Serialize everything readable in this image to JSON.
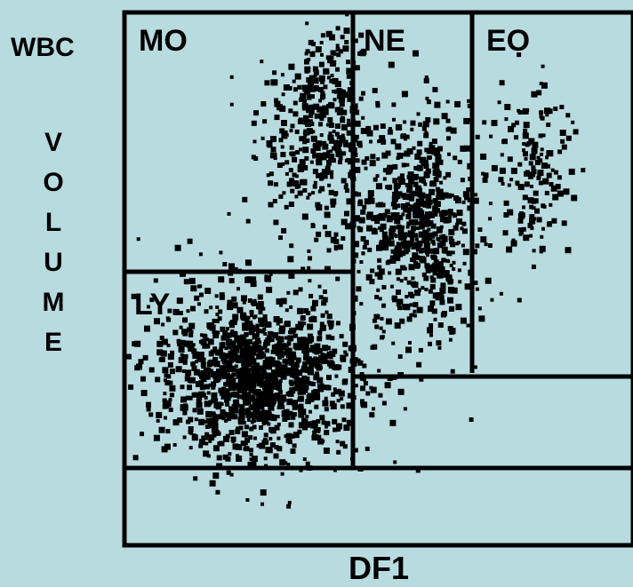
{
  "chart_data": {
    "type": "scatter",
    "title": "WBC",
    "xlabel": "DF1",
    "ylabel": "VOLUME",
    "xlim": [
      0,
      100
    ],
    "ylim": [
      0,
      100
    ],
    "grid": false,
    "colors": {
      "background": "#b8dbe0",
      "points": "#000000",
      "frame": "#000000"
    },
    "regions": [
      {
        "name": "MO"
      },
      {
        "name": "NE"
      },
      {
        "name": "EO"
      },
      {
        "name": "LY"
      }
    ],
    "clusters": [
      {
        "region": "MO",
        "center": [
          38,
          78
        ],
        "spread": [
          6,
          10
        ],
        "count": 420
      },
      {
        "region": "NE",
        "center": [
          58,
          60
        ],
        "spread": [
          6,
          11
        ],
        "count": 650
      },
      {
        "region": "EO",
        "center": [
          80,
          70
        ],
        "spread": [
          4,
          8
        ],
        "count": 160
      },
      {
        "region": "LY",
        "center": [
          26,
          32
        ],
        "spread": [
          10,
          8
        ],
        "count": 1300
      }
    ]
  }
}
